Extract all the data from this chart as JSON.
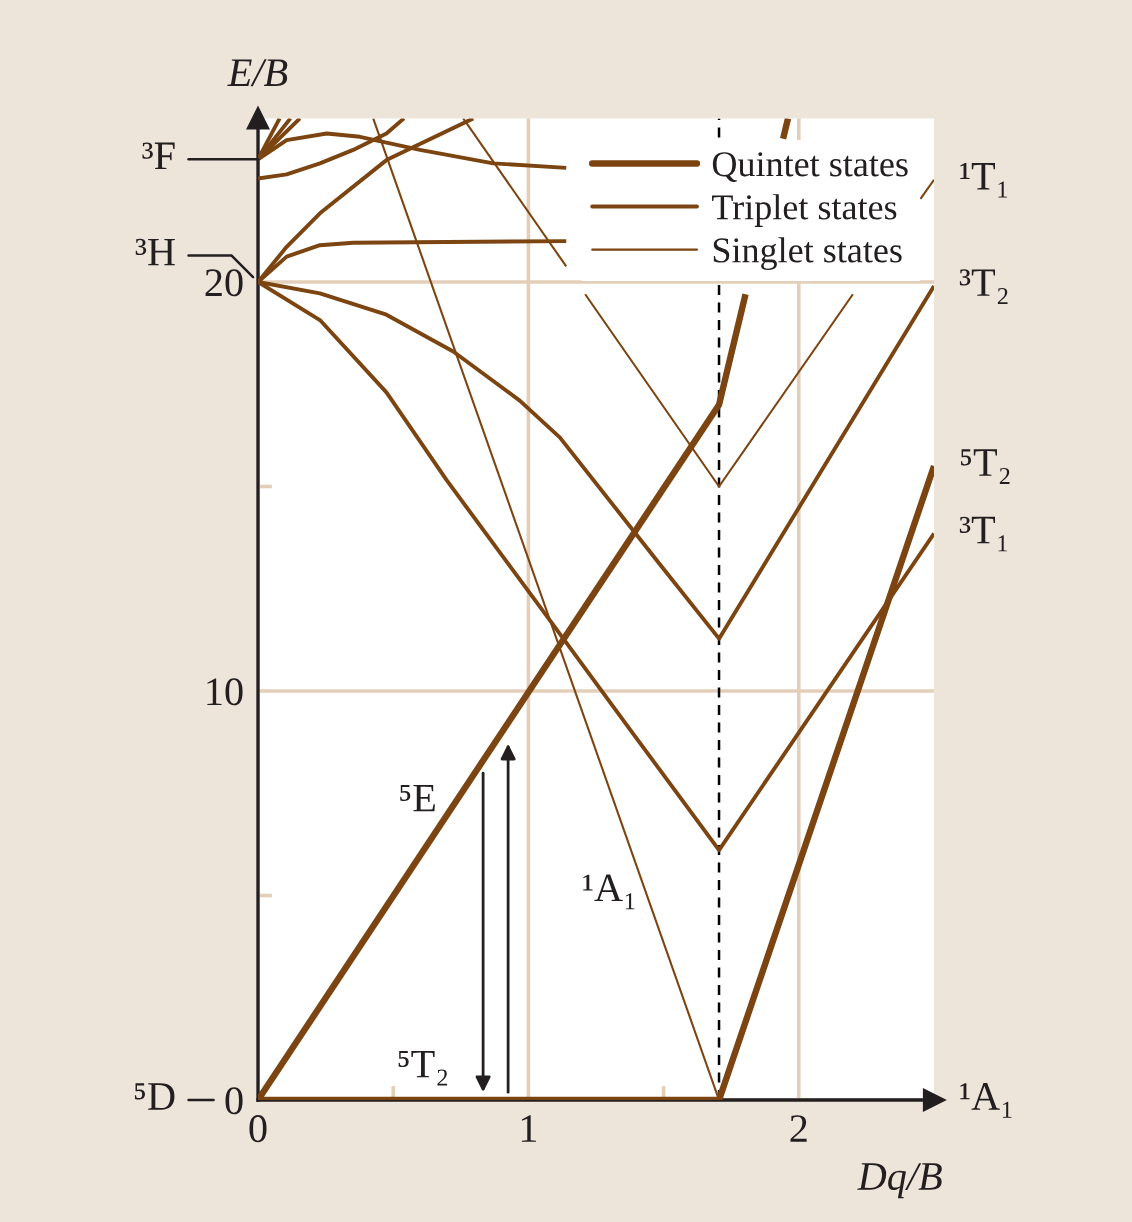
{
  "chart_data": {
    "type": "line",
    "xlabel": "Dq/B",
    "ylabel": "E/B",
    "xlim": [
      0,
      2.5
    ],
    "ylim": [
      0,
      24
    ],
    "xticks": [
      0,
      {
        "value": 0.5,
        "label": null
      },
      1,
      {
        "value": 1.5,
        "label": null
      },
      2
    ],
    "yticks": [
      0,
      {
        "value": 5,
        "label": null
      },
      10,
      {
        "value": 15,
        "label": null
      },
      20
    ],
    "grid": true,
    "legend": "top right",
    "series": [
      {
        "name": "Quintet states",
        "color": "#7b4411",
        "x": [
          0,
          1.705,
          2.5
        ],
        "values": [
          0,
          0,
          15.5
        ]
      },
      {
        "color": "#7b4411",
        "x": [
          0,
          1.705,
          1.803
        ],
        "values": [
          0,
          17.0,
          19.7
        ]
      },
      {
        "color": "#7b4411",
        "x": [
          1.942,
          1.96
        ],
        "values": [
          23.5,
          24
        ]
      },
      {
        "name": "Triplet states",
        "color": "#7b4411",
        "x": [
          0,
          0.229,
          0.475,
          0.722,
          0.968,
          1.116,
          1.486,
          1.705,
          2.5
        ],
        "values": [
          20,
          19.72,
          19.2,
          18.3,
          17.1,
          16.2,
          13.1,
          11.28,
          19.9
        ]
      },
      {
        "color": "#7b4411",
        "x": [
          0,
          0.229,
          0.475,
          0.697,
          1.066,
          1.387,
          1.705,
          2.5
        ],
        "values": [
          20,
          19.07,
          17.3,
          15.16,
          11.85,
          8.96,
          6.11,
          13.85
        ]
      },
      {
        "color": "#7b4411",
        "x": [
          0,
          0.106,
          0.229,
          0.352,
          1.14
        ],
        "values": [
          20,
          20.62,
          20.9,
          20.96,
          21.0
        ]
      },
      {
        "color": "#7b4411",
        "x": [
          0,
          0.106,
          0.229,
          0.475,
          0.796
        ],
        "values": [
          20,
          20.86,
          21.68,
          22.98,
          24
        ]
      },
      {
        "color": "#7b4411",
        "x": [
          0,
          0.106,
          0.254,
          0.377,
          0.599,
          0.87,
          1.14
        ],
        "values": [
          23,
          23.47,
          23.63,
          23.55,
          23.23,
          22.9,
          22.79
        ]
      },
      {
        "color": "#7b4411",
        "x": [
          0,
          0.106,
          0.229,
          0.352,
          0.475,
          0.54
        ],
        "values": [
          22.53,
          22.63,
          22.9,
          23.23,
          23.63,
          24
        ]
      },
      {
        "color": "#7b4411",
        "x": [
          0,
          0.08
        ],
        "values": [
          23,
          24
        ]
      },
      {
        "color": "#7b4411",
        "x": [
          0,
          0.12
        ],
        "values": [
          23,
          24
        ]
      },
      {
        "color": "#7b4411",
        "x": [
          0,
          0.155
        ],
        "values": [
          23,
          24
        ]
      },
      {
        "name": "Singlet states",
        "color": "#7b4411",
        "x": [
          0.426,
          1.705
        ],
        "values": [
          24,
          0
        ]
      },
      {
        "color": "#7b4411",
        "x": [
          0.759,
          1.14
        ],
        "values": [
          24,
          20.38
        ]
      },
      {
        "color": "#7b4411",
        "x": [
          1.21,
          1.705,
          2.2
        ],
        "values": [
          19.7,
          15.0,
          19.7
        ]
      },
      {
        "color": "#7b4411",
        "x": [
          2.45,
          2.5
        ],
        "values": [
          22.03,
          22.5
        ]
      }
    ],
    "ref_lines": [
      {
        "axis": "x",
        "value": 1.705,
        "color": "#000000",
        "line_style": "dashed"
      }
    ],
    "annotations": [
      "³F",
      "³H",
      "⁵D",
      "¹T₁",
      "³T₂",
      "⁵T₂",
      "³T₁",
      "¹A₁",
      "⁵E",
      "¹A₁",
      "⁵T₂"
    ]
  }
}
